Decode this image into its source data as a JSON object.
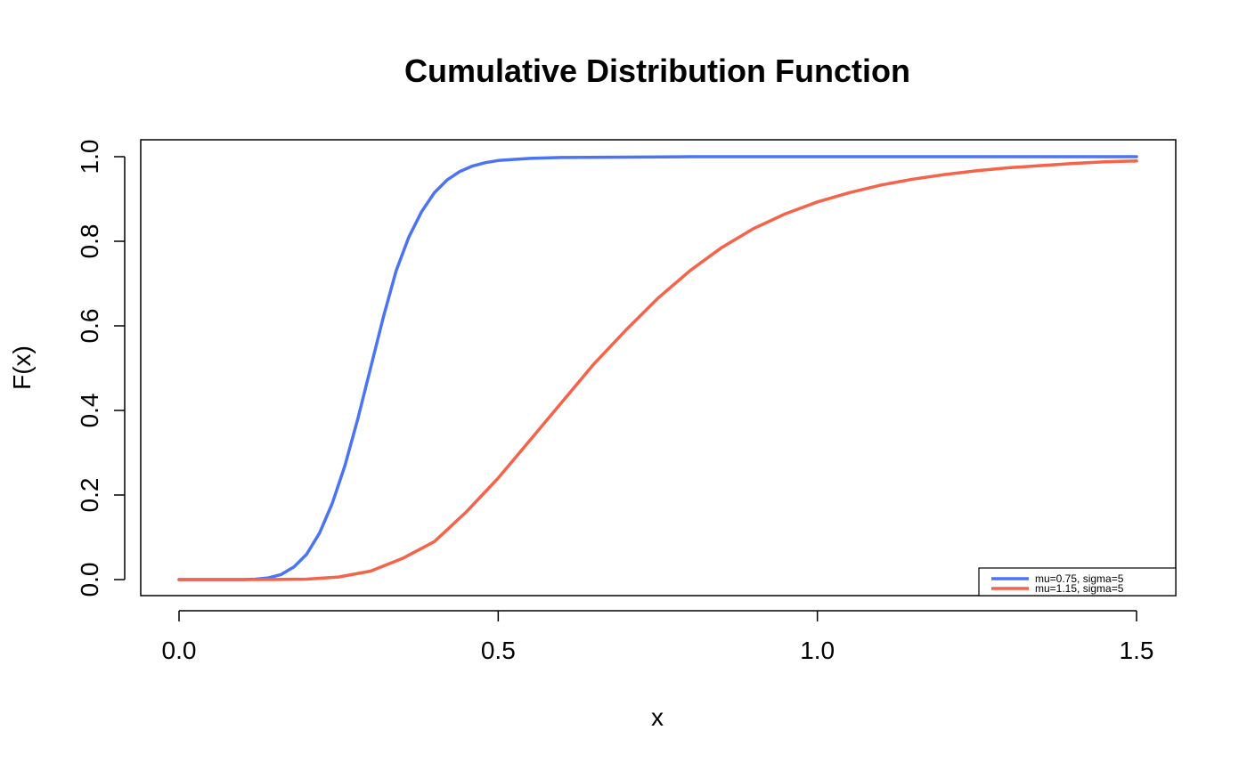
{
  "chart_data": {
    "type": "line",
    "title": "Cumulative Distribution Function",
    "xlabel": "x",
    "ylabel": "F(x)",
    "xlim": [
      0,
      1.5
    ],
    "ylim": [
      0,
      1
    ],
    "x_ticks": [
      0.0,
      0.5,
      1.0,
      1.5
    ],
    "x_tick_labels": [
      "0.0",
      "0.5",
      "1.0",
      "1.5"
    ],
    "y_ticks": [
      0.0,
      0.2,
      0.4,
      0.6,
      0.8,
      1.0
    ],
    "y_tick_labels": [
      "0.0",
      "0.2",
      "0.4",
      "0.6",
      "0.8",
      "1.0"
    ],
    "grid": false,
    "legend_position": "bottom-right",
    "series": [
      {
        "name": "mu=0.75, sigma=5",
        "color": "#4B74F2",
        "x": [
          0,
          0.1,
          0.12,
          0.14,
          0.16,
          0.18,
          0.2,
          0.22,
          0.24,
          0.26,
          0.28,
          0.3,
          0.32,
          0.34,
          0.36,
          0.38,
          0.4,
          0.42,
          0.44,
          0.46,
          0.48,
          0.5,
          0.55,
          0.6,
          0.7,
          0.8,
          1.0,
          1.2,
          1.5
        ],
        "y": [
          0,
          0,
          0.001,
          0.004,
          0.012,
          0.03,
          0.06,
          0.11,
          0.18,
          0.27,
          0.38,
          0.5,
          0.62,
          0.73,
          0.81,
          0.87,
          0.915,
          0.945,
          0.965,
          0.978,
          0.986,
          0.991,
          0.996,
          0.998,
          0.999,
          1.0,
          1.0,
          1.0,
          1.0
        ]
      },
      {
        "name": "mu=1.15, sigma=5",
        "color": "#F4634A",
        "x": [
          0,
          0.1,
          0.15,
          0.2,
          0.25,
          0.3,
          0.35,
          0.4,
          0.45,
          0.5,
          0.55,
          0.6,
          0.65,
          0.7,
          0.75,
          0.8,
          0.85,
          0.9,
          0.95,
          1.0,
          1.05,
          1.1,
          1.15,
          1.2,
          1.25,
          1.3,
          1.35,
          1.4,
          1.45,
          1.5
        ],
        "y": [
          0,
          0,
          0.0003,
          0.001,
          0.006,
          0.02,
          0.05,
          0.09,
          0.16,
          0.24,
          0.33,
          0.42,
          0.51,
          0.59,
          0.665,
          0.73,
          0.785,
          0.83,
          0.865,
          0.893,
          0.915,
          0.933,
          0.947,
          0.958,
          0.967,
          0.974,
          0.979,
          0.984,
          0.988,
          0.99
        ]
      }
    ]
  }
}
